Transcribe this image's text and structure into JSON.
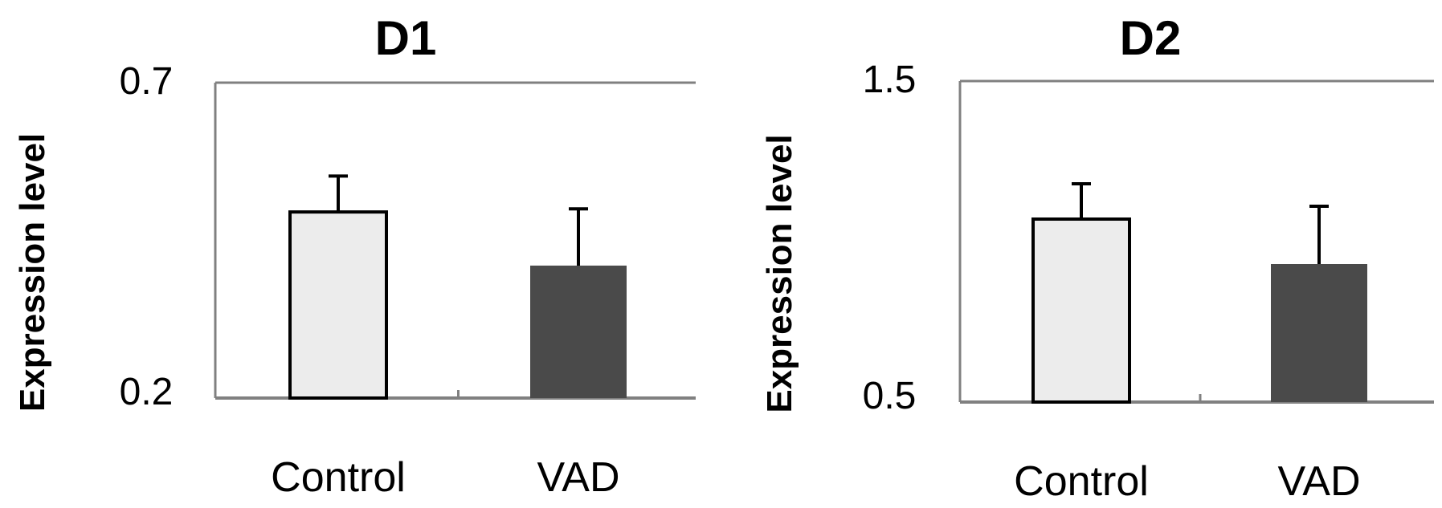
{
  "chart_data": [
    {
      "type": "bar",
      "title": "D1",
      "ylabel": "Expression level",
      "categories": [
        "Control",
        "VAD"
      ],
      "values": [
        0.495,
        0.41
      ],
      "error": [
        0.057,
        0.09
      ],
      "ylim": [
        0.2,
        0.7
      ],
      "yticks": [
        "0.7",
        "0.2"
      ],
      "bar_colors": [
        "#ececec",
        "#4a4a4a"
      ],
      "grid": false
    },
    {
      "type": "bar",
      "title": "D2",
      "ylabel": "Expression level",
      "categories": [
        "Control",
        "VAD"
      ],
      "values": [
        1.07,
        0.93
      ],
      "error": [
        0.11,
        0.18
      ],
      "ylim": [
        0.5,
        1.5
      ],
      "yticks": [
        "1.5",
        "0.5"
      ],
      "bar_colors": [
        "#ececec",
        "#4a4a4a"
      ],
      "grid": false
    }
  ],
  "colors": {
    "axis": "#808080",
    "bar_outline": "#000000",
    "error_bar": "#000000"
  }
}
